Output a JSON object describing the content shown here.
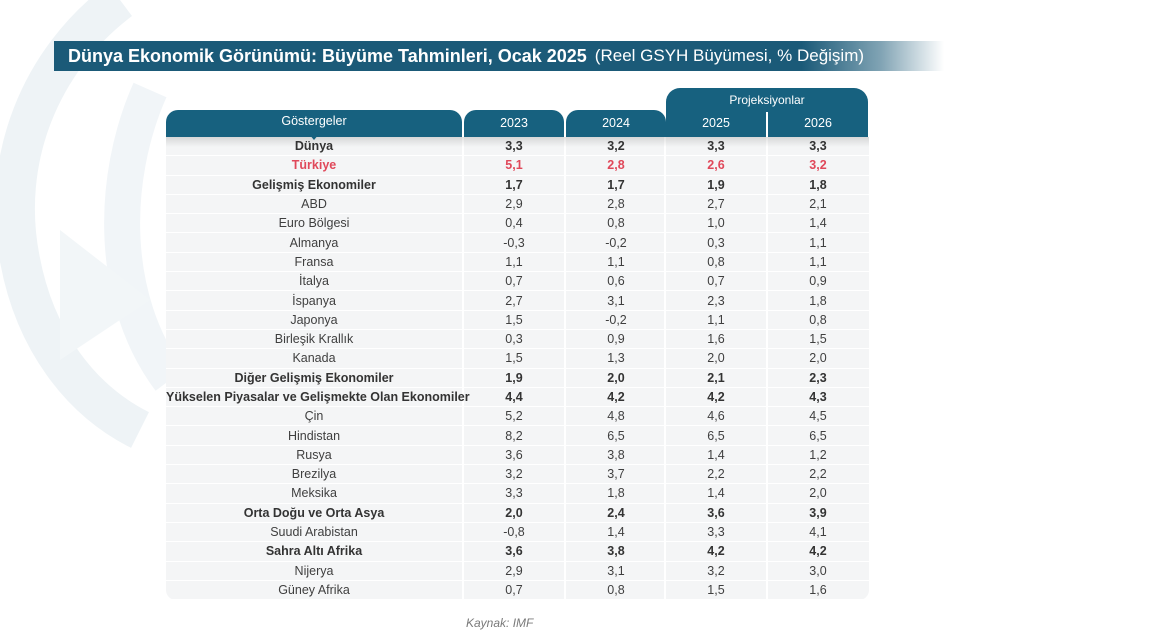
{
  "title": {
    "main": "Dünya Ekonomik Görünümü: Büyüme Tahminleri, Ocak 2025",
    "sub": "(Reel GSYH Büyümesi, % Değişim)"
  },
  "table": {
    "projection_label": "Projeksiyonlar",
    "headers": [
      "Göstergeler",
      "2023",
      "2024",
      "2025",
      "2026"
    ],
    "rows": [
      {
        "name": "Dünya",
        "values": [
          "3,3",
          "3,2",
          "3,3",
          "3,3"
        ],
        "style": "bold"
      },
      {
        "name": "Türkiye",
        "values": [
          "5,1",
          "2,8",
          "2,6",
          "3,2"
        ],
        "style": "red"
      },
      {
        "name": "Gelişmiş Ekonomiler",
        "values": [
          "1,7",
          "1,7",
          "1,9",
          "1,8"
        ],
        "style": "bold"
      },
      {
        "name": "ABD",
        "values": [
          "2,9",
          "2,8",
          "2,7",
          "2,1"
        ],
        "style": "normal"
      },
      {
        "name": "Euro Bölgesi",
        "values": [
          "0,4",
          "0,8",
          "1,0",
          "1,4"
        ],
        "style": "normal"
      },
      {
        "name": "Almanya",
        "values": [
          "-0,3",
          "-0,2",
          "0,3",
          "1,1"
        ],
        "style": "normal"
      },
      {
        "name": "Fransa",
        "values": [
          "1,1",
          "1,1",
          "0,8",
          "1,1"
        ],
        "style": "normal"
      },
      {
        "name": "İtalya",
        "values": [
          "0,7",
          "0,6",
          "0,7",
          "0,9"
        ],
        "style": "normal"
      },
      {
        "name": "İspanya",
        "values": [
          "2,7",
          "3,1",
          "2,3",
          "1,8"
        ],
        "style": "normal"
      },
      {
        "name": "Japonya",
        "values": [
          "1,5",
          "-0,2",
          "1,1",
          "0,8"
        ],
        "style": "normal"
      },
      {
        "name": "Birleşik Krallık",
        "values": [
          "0,3",
          "0,9",
          "1,6",
          "1,5"
        ],
        "style": "normal"
      },
      {
        "name": "Kanada",
        "values": [
          "1,5",
          "1,3",
          "2,0",
          "2,0"
        ],
        "style": "normal"
      },
      {
        "name": "Diğer Gelişmiş Ekonomiler",
        "values": [
          "1,9",
          "2,0",
          "2,1",
          "2,3"
        ],
        "style": "bold"
      },
      {
        "name": "Yükselen Piyasalar ve Gelişmekte Olan Ekonomiler",
        "values": [
          "4,4",
          "4,2",
          "4,2",
          "4,3"
        ],
        "style": "bold"
      },
      {
        "name": "Çin",
        "values": [
          "5,2",
          "4,8",
          "4,6",
          "4,5"
        ],
        "style": "normal"
      },
      {
        "name": "Hindistan",
        "values": [
          "8,2",
          "6,5",
          "6,5",
          "6,5"
        ],
        "style": "normal"
      },
      {
        "name": "Rusya",
        "values": [
          "3,6",
          "3,8",
          "1,4",
          "1,2"
        ],
        "style": "normal"
      },
      {
        "name": "Brezilya",
        "values": [
          "3,2",
          "3,7",
          "2,2",
          "2,2"
        ],
        "style": "normal"
      },
      {
        "name": "Meksika",
        "values": [
          "3,3",
          "1,8",
          "1,4",
          "2,0"
        ],
        "style": "normal"
      },
      {
        "name": "Orta Doğu ve Orta Asya",
        "values": [
          "2,0",
          "2,4",
          "3,6",
          "3,9"
        ],
        "style": "bold"
      },
      {
        "name": "Suudi Arabistan",
        "values": [
          "-0,8",
          "1,4",
          "3,3",
          "4,1"
        ],
        "style": "normal"
      },
      {
        "name": "Sahra Altı Afrika",
        "values": [
          "3,6",
          "3,8",
          "4,2",
          "4,2"
        ],
        "style": "bold"
      },
      {
        "name": "Nijerya",
        "values": [
          "2,9",
          "3,1",
          "3,2",
          "3,0"
        ],
        "style": "normal"
      },
      {
        "name": "Güney Afrika",
        "values": [
          "0,7",
          "0,8",
          "1,5",
          "1,6"
        ],
        "style": "normal"
      }
    ]
  },
  "source": "Kaynak: IMF",
  "colors": {
    "header": "#17617f",
    "title_bar": "#1b5a78",
    "highlight": "#e0485a",
    "table_bg": "#f4f5f6"
  }
}
